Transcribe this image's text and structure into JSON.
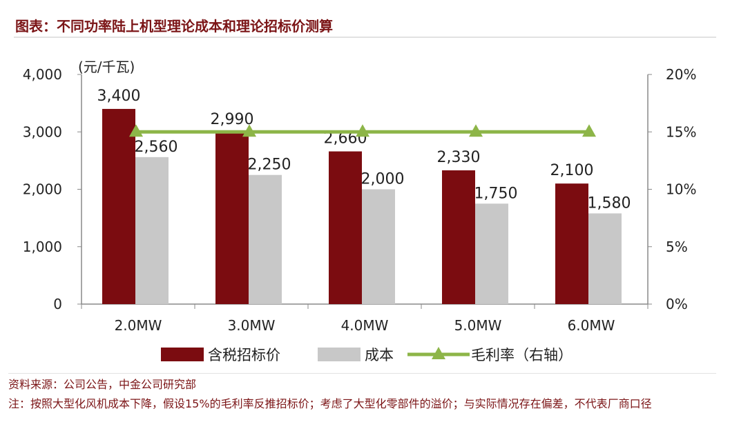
{
  "title": "图表：不同功率陆上机型理论成本和理论招标价测算",
  "chart_data": {
    "type": "bar",
    "categories": [
      "2.0MW",
      "3.0MW",
      "4.0MW",
      "5.0MW",
      "6.0MW"
    ],
    "series": [
      {
        "name": "含税招标价",
        "type": "bar",
        "axis": "left",
        "color": "#7b0c10",
        "values": [
          3400,
          2990,
          2660,
          2330,
          2100
        ],
        "labels": [
          "3,400",
          "2,990",
          "2,660",
          "2,330",
          "2,100"
        ]
      },
      {
        "name": "成本",
        "type": "bar",
        "axis": "left",
        "color": "#c8c8c8",
        "values": [
          2560,
          2250,
          2000,
          1750,
          1580
        ],
        "labels": [
          "2,560",
          "2,250",
          "2,000",
          "1,750",
          "1,580"
        ]
      },
      {
        "name": "毛利率（右轴）",
        "type": "line",
        "axis": "right",
        "color": "#8db548",
        "marker": "triangle",
        "values": [
          15,
          15,
          15,
          15,
          15
        ]
      }
    ],
    "ylabel": "(元/千瓦)",
    "ylim": [
      0,
      4000
    ],
    "yticks": [
      "0",
      "1,000",
      "2,000",
      "3,000",
      "4,000"
    ],
    "y2lim": [
      0,
      20
    ],
    "y2ticks": [
      "0%",
      "5%",
      "10%",
      "15%",
      "20%"
    ],
    "grid": false,
    "legend_position": "bottom"
  },
  "source": "资料来源：公司公告，中金公司研究部",
  "note": "注：按照大型化风机成本下降，假设15%的毛利率反推招标价；考虑了大型化零部件的溢价；与实际情况存在偏差，不代表厂商口径"
}
